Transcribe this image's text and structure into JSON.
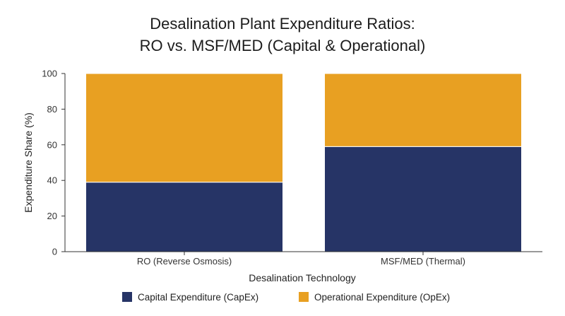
{
  "chart_data": {
    "type": "bar",
    "stacked": true,
    "title_lines": [
      "Desalination Plant Expenditure Ratios:",
      "RO vs. MSF/MED (Capital & Operational)"
    ],
    "xlabel": "Desalination Technology",
    "ylabel": "Expenditure Share (%)",
    "categories": [
      "RO (Reverse Osmosis)",
      "MSF/MED (Thermal)"
    ],
    "ylim": [
      0,
      100
    ],
    "yticks": [
      0,
      20,
      40,
      60,
      80,
      100
    ],
    "series": [
      {
        "name": "Capital Expenditure (CapEx)",
        "values": [
          39,
          59
        ],
        "color": "#263466"
      },
      {
        "name": "Operational Expenditure (OpEx)",
        "values": [
          61,
          41
        ],
        "color": "#E8A022"
      }
    ],
    "grid": false,
    "legend_position": "bottom"
  }
}
